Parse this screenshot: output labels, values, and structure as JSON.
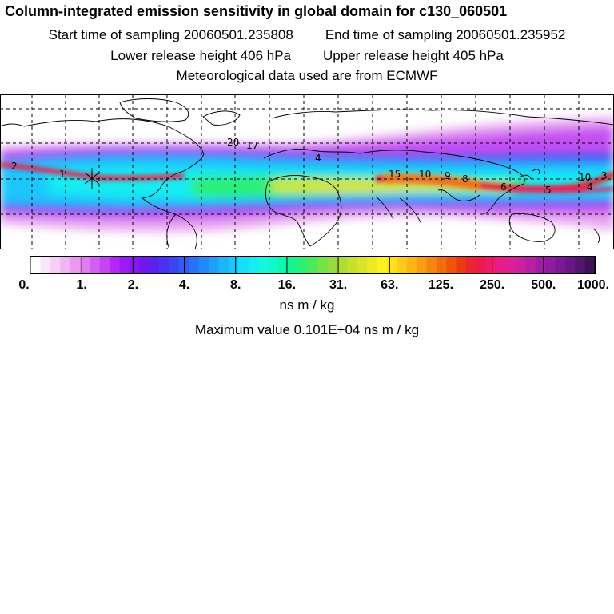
{
  "header": {
    "title": "Column-integrated emission sensitivity in global domain for c130_060501",
    "start_time": "Start time of sampling 20060501.235808",
    "end_time": "End time of sampling 20060501.235952",
    "lower_release": "Lower release height  406 hPa",
    "upper_release": "Upper release height  405 hPa",
    "met_data": "Meteorological data used are from ECMWF"
  },
  "map": {
    "contour_labels": [
      "20",
      "17",
      "2",
      "1",
      "4",
      "15",
      "10",
      "9",
      "8",
      "6",
      "5",
      "4",
      "3",
      "10"
    ]
  },
  "colorbar": {
    "tick_labels": [
      "0.",
      "1.",
      "2.",
      "4.",
      "8.",
      "16.",
      "31.",
      "63.",
      "125.",
      "250.",
      "500.",
      "1000."
    ],
    "colors": [
      "#ffffff",
      "#fbe6fb",
      "#f7d0f7",
      "#f1b6f1",
      "#eb9aef",
      "#e17cf0",
      "#d55ff3",
      "#c642f5",
      "#b527f6",
      "#9c1af5",
      "#8417f2",
      "#6e18ee",
      "#5a20ec",
      "#4a30ef",
      "#3a45f2",
      "#2f5cf6",
      "#2872f8",
      "#2288fb",
      "#1f9efc",
      "#1cb4fd",
      "#1ac8fd",
      "#19dcfb",
      "#17ecf2",
      "#15f5e0",
      "#12f8c8",
      "#10f8ae",
      "#14f591",
      "#2cf074",
      "#4cea58",
      "#72e447",
      "#92dd3a",
      "#aedd32",
      "#c6e02c",
      "#dae428",
      "#ecea24",
      "#fbf220",
      "#fde01c",
      "#fdcc17",
      "#fbb614",
      "#f99e12",
      "#f6860f",
      "#f26e0d",
      "#ee540c",
      "#ea3a10",
      "#ec2430",
      "#ee1a4e",
      "#ee1a6c",
      "#e81c86",
      "#dc1e98",
      "#cc20a2",
      "#b81ea6",
      "#a41ca6",
      "#901aa2",
      "#7c1898",
      "#681688",
      "#541470",
      "#3e1256"
    ],
    "units": "ns m / kg",
    "max_value": "Maximum value  0.101E+04 ns m / kg"
  }
}
